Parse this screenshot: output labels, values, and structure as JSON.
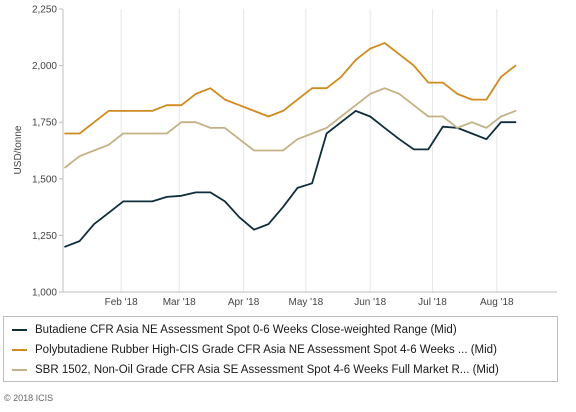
{
  "chart_data": {
    "type": "line",
    "ylabel": "USD/tonne",
    "ylim": [
      1000,
      2250
    ],
    "yticks": [
      "1,000",
      "1,250",
      "1,500",
      "1,750",
      "2,000",
      "2,250"
    ],
    "ytick_values": [
      1000,
      1250,
      1500,
      1750,
      2000,
      2250
    ],
    "xlim": [
      "2018-01-04",
      "2018-08-30"
    ],
    "xticks": [
      {
        "label": "Feb '18",
        "date": "2018-02-01"
      },
      {
        "label": "Mar '18",
        "date": "2018-03-01"
      },
      {
        "label": "Apr '18",
        "date": "2018-04-01"
      },
      {
        "label": "May '18",
        "date": "2018-05-01"
      },
      {
        "label": "Jun '18",
        "date": "2018-06-01"
      },
      {
        "label": "Jul '18",
        "date": "2018-07-01"
      },
      {
        "label": "Aug '18",
        "date": "2018-08-01"
      }
    ],
    "grid": "vertical",
    "legend_position": "bottom",
    "series": [
      {
        "name": "Butadiene CFR Asia NE Assessment Spot 0-6 Weeks Close-weighted Range (Mid)",
        "color": "#0f2d3a",
        "points": [
          [
            "2018-01-05",
            1200
          ],
          [
            "2018-01-12",
            1225
          ],
          [
            "2018-01-19",
            1300
          ],
          [
            "2018-01-26",
            1350
          ],
          [
            "2018-02-02",
            1400
          ],
          [
            "2018-02-09",
            1400
          ],
          [
            "2018-02-16",
            1400
          ],
          [
            "2018-02-23",
            1420
          ],
          [
            "2018-03-02",
            1425
          ],
          [
            "2018-03-09",
            1440
          ],
          [
            "2018-03-16",
            1440
          ],
          [
            "2018-03-23",
            1400
          ],
          [
            "2018-03-30",
            1330
          ],
          [
            "2018-04-06",
            1275
          ],
          [
            "2018-04-13",
            1300
          ],
          [
            "2018-04-20",
            1375
          ],
          [
            "2018-04-27",
            1460
          ],
          [
            "2018-05-04",
            1480
          ],
          [
            "2018-05-11",
            1700
          ],
          [
            "2018-05-18",
            1750
          ],
          [
            "2018-05-25",
            1800
          ],
          [
            "2018-06-01",
            1775
          ],
          [
            "2018-06-08",
            1725
          ],
          [
            "2018-06-15",
            1675
          ],
          [
            "2018-06-22",
            1630
          ],
          [
            "2018-06-29",
            1630
          ],
          [
            "2018-07-06",
            1730
          ],
          [
            "2018-07-13",
            1725
          ],
          [
            "2018-07-20",
            1700
          ],
          [
            "2018-07-27",
            1675
          ],
          [
            "2018-08-03",
            1750
          ],
          [
            "2018-08-10",
            1750
          ]
        ]
      },
      {
        "name": "Polybutadiene Rubber High-CIS Grade CFR Asia NE Assessment Spot 4-6 Weeks ... (Mid)",
        "color": "#d08a1e",
        "points": [
          [
            "2018-01-05",
            1700
          ],
          [
            "2018-01-12",
            1700
          ],
          [
            "2018-01-19",
            1750
          ],
          [
            "2018-01-26",
            1800
          ],
          [
            "2018-02-02",
            1800
          ],
          [
            "2018-02-09",
            1800
          ],
          [
            "2018-02-16",
            1800
          ],
          [
            "2018-02-23",
            1825
          ],
          [
            "2018-03-02",
            1825
          ],
          [
            "2018-03-09",
            1875
          ],
          [
            "2018-03-16",
            1900
          ],
          [
            "2018-03-23",
            1850
          ],
          [
            "2018-03-30",
            1825
          ],
          [
            "2018-04-06",
            1800
          ],
          [
            "2018-04-13",
            1775
          ],
          [
            "2018-04-20",
            1800
          ],
          [
            "2018-04-27",
            1850
          ],
          [
            "2018-05-04",
            1900
          ],
          [
            "2018-05-11",
            1900
          ],
          [
            "2018-05-18",
            1950
          ],
          [
            "2018-05-25",
            2025
          ],
          [
            "2018-06-01",
            2075
          ],
          [
            "2018-06-08",
            2100
          ],
          [
            "2018-06-15",
            2050
          ],
          [
            "2018-06-22",
            2000
          ],
          [
            "2018-06-29",
            1925
          ],
          [
            "2018-07-06",
            1925
          ],
          [
            "2018-07-13",
            1875
          ],
          [
            "2018-07-20",
            1850
          ],
          [
            "2018-07-27",
            1850
          ],
          [
            "2018-08-03",
            1950
          ],
          [
            "2018-08-10",
            2000
          ]
        ]
      },
      {
        "name": "SBR 1502, Non-Oil Grade CFR Asia SE Assessment Spot 4-6 Weeks Full Market R... (Mid)",
        "color": "#c4b187",
        "points": [
          [
            "2018-01-05",
            1550
          ],
          [
            "2018-01-12",
            1600
          ],
          [
            "2018-01-19",
            1625
          ],
          [
            "2018-01-26",
            1650
          ],
          [
            "2018-02-02",
            1700
          ],
          [
            "2018-02-09",
            1700
          ],
          [
            "2018-02-16",
            1700
          ],
          [
            "2018-02-23",
            1700
          ],
          [
            "2018-03-02",
            1750
          ],
          [
            "2018-03-09",
            1750
          ],
          [
            "2018-03-16",
            1725
          ],
          [
            "2018-03-23",
            1725
          ],
          [
            "2018-03-30",
            1675
          ],
          [
            "2018-04-06",
            1625
          ],
          [
            "2018-04-13",
            1625
          ],
          [
            "2018-04-20",
            1625
          ],
          [
            "2018-04-27",
            1675
          ],
          [
            "2018-05-04",
            1700
          ],
          [
            "2018-05-11",
            1725
          ],
          [
            "2018-05-18",
            1775
          ],
          [
            "2018-05-25",
            1825
          ],
          [
            "2018-06-01",
            1875
          ],
          [
            "2018-06-08",
            1900
          ],
          [
            "2018-06-15",
            1875
          ],
          [
            "2018-06-22",
            1825
          ],
          [
            "2018-06-29",
            1775
          ],
          [
            "2018-07-06",
            1775
          ],
          [
            "2018-07-13",
            1725
          ],
          [
            "2018-07-20",
            1750
          ],
          [
            "2018-07-27",
            1725
          ],
          [
            "2018-08-03",
            1775
          ],
          [
            "2018-08-10",
            1800
          ]
        ]
      }
    ]
  },
  "footer": {
    "copyright": "© 2018 ICIS"
  }
}
